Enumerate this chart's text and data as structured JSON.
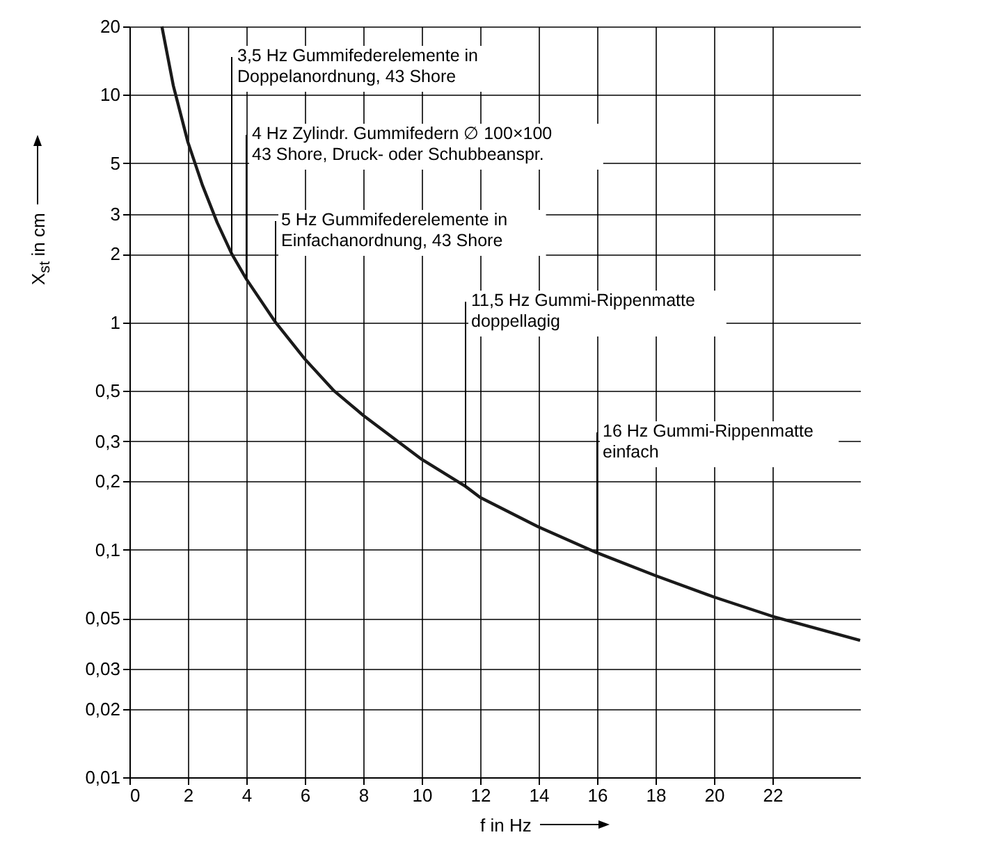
{
  "chart_data": {
    "type": "line",
    "xlabel": "f in Hz",
    "ylabel": "X$_{st}$ in cm",
    "x": [
      1.11,
      1.5,
      2,
      2.5,
      3,
      3.5,
      4,
      5,
      6,
      7,
      8,
      10,
      11.5,
      12,
      14,
      16,
      18,
      20,
      22,
      25
    ],
    "series": [
      {
        "color": "#1a1a1a",
        "values": [
          20,
          11,
          6.2,
          4,
          2.75,
          2.0,
          1.55,
          1.0,
          0.69,
          0.5,
          0.39,
          0.25,
          0.19,
          0.17,
          0.126,
          0.097,
          0.077,
          0.062,
          0.051,
          0.04
        ]
      }
    ],
    "log": "y",
    "grid": true,
    "legend": false,
    "marker": "none",
    "line_style": "solid",
    "xlim": [
      0,
      25
    ],
    "xticks": [
      0,
      2,
      4,
      6,
      8,
      10,
      12,
      14,
      16,
      18,
      20,
      22
    ],
    "ylim": [
      0.01,
      20
    ],
    "yticks": [
      {
        "value": 0.01,
        "label": "0,01"
      },
      {
        "value": 0.02,
        "label": "0,02"
      },
      {
        "value": 0.03,
        "label": "0,03"
      },
      {
        "value": 0.05,
        "label": "0,05"
      },
      {
        "value": 0.1,
        "label": "0,1"
      },
      {
        "value": 0.2,
        "label": "0,2"
      },
      {
        "value": 0.3,
        "label": "0,3"
      },
      {
        "value": 0.5,
        "label": "0,5"
      },
      1,
      2,
      3,
      5,
      10,
      20
    ],
    "annotations": [
      {
        "text": "3,5 Hz  Gummifederelemente in\nDoppelanordnung, 43 Shore",
        "x": 3.5,
        "y": 2.0
      },
      {
        "text": "4 Hz  Zylindr. Gummifedern ∅ 100×100\n43 Shore, Druck- oder Schubbeanspr.",
        "x": 4,
        "y": 1.55
      },
      {
        "text": "5 Hz  Gummifederelemente in\nEinfachanordnung, 43 Shore",
        "x": 5,
        "y": 1.0
      },
      {
        "text": "11,5 Hz  Gummi-Rippenmatte\ndoppellagig",
        "x": 11.5,
        "y": 0.19
      },
      {
        "text": "16 Hz  Gummi-Rippenmatte\neinfach",
        "x": 16,
        "y": 0.097
      }
    ]
  }
}
